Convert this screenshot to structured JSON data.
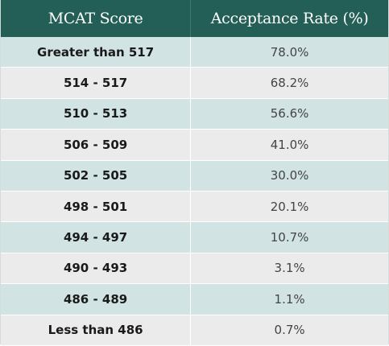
{
  "table": {
    "headers": [
      "MCAT Score",
      "Acceptance Rate (%)"
    ],
    "rows": [
      [
        "Greater than 517",
        "78.0%"
      ],
      [
        "514 - 517",
        "68.2%"
      ],
      [
        "510 - 513",
        "56.6%"
      ],
      [
        "506 - 509",
        "41.0%"
      ],
      [
        "502 - 505",
        "30.0%"
      ],
      [
        "498 - 501",
        "20.1%"
      ],
      [
        "494 - 497",
        "10.7%"
      ],
      [
        "490 - 493",
        "3.1%"
      ],
      [
        "486 - 489",
        "1.1%"
      ],
      [
        "Less than 486",
        "0.7%"
      ]
    ]
  },
  "colors": {
    "header_bg": "#245f57",
    "row_odd_bg": "#d2e3e4",
    "row_even_bg": "#ebebeb"
  }
}
